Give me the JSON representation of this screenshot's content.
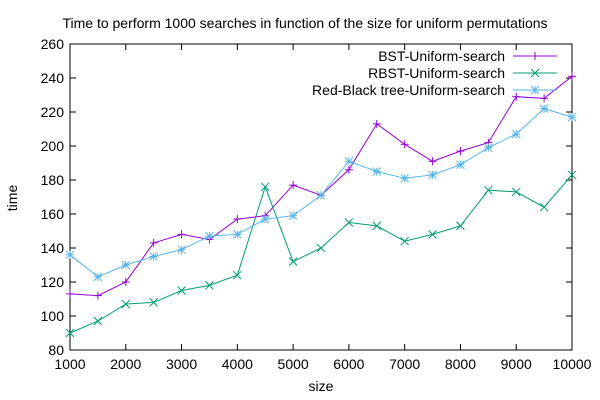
{
  "chart_data": {
    "type": "line",
    "title": "Time to perform 1000 searches in function of the size for uniform permutations",
    "xlabel": "size",
    "ylabel": "time",
    "xlim": [
      1000,
      10000
    ],
    "ylim": [
      80,
      260
    ],
    "xticks": [
      1000,
      2000,
      3000,
      4000,
      5000,
      6000,
      7000,
      8000,
      9000,
      10000
    ],
    "yticks": [
      80,
      100,
      120,
      140,
      160,
      180,
      200,
      220,
      240,
      260
    ],
    "grid": false,
    "legend_position": "top-right",
    "x": [
      1000,
      1500,
      2000,
      2500,
      3000,
      3500,
      4000,
      4500,
      5000,
      5500,
      6000,
      6500,
      7000,
      7500,
      8000,
      8500,
      9000,
      9500,
      10000
    ],
    "series": [
      {
        "name": "BST-Uniform-search",
        "color": "#9400d3",
        "marker": "plus",
        "values": [
          113,
          112,
          120,
          143,
          148,
          145,
          157,
          159,
          177,
          171,
          186,
          213,
          201,
          191,
          197,
          202,
          229,
          228,
          241
        ]
      },
      {
        "name": "RBST-Uniform-search",
        "color": "#009e73",
        "marker": "cross",
        "values": [
          90,
          97,
          107,
          108,
          115,
          118,
          124,
          176,
          132,
          140,
          155,
          153,
          144,
          148,
          153,
          174,
          173,
          164,
          183
        ]
      },
      {
        "name": "Red-Black tree-Uniform-search",
        "color": "#56b4e9",
        "marker": "star",
        "values": [
          136,
          123,
          130,
          135,
          139,
          147,
          148,
          157,
          159,
          171,
          191,
          185,
          181,
          183,
          189,
          199,
          207,
          222,
          217
        ]
      }
    ]
  }
}
